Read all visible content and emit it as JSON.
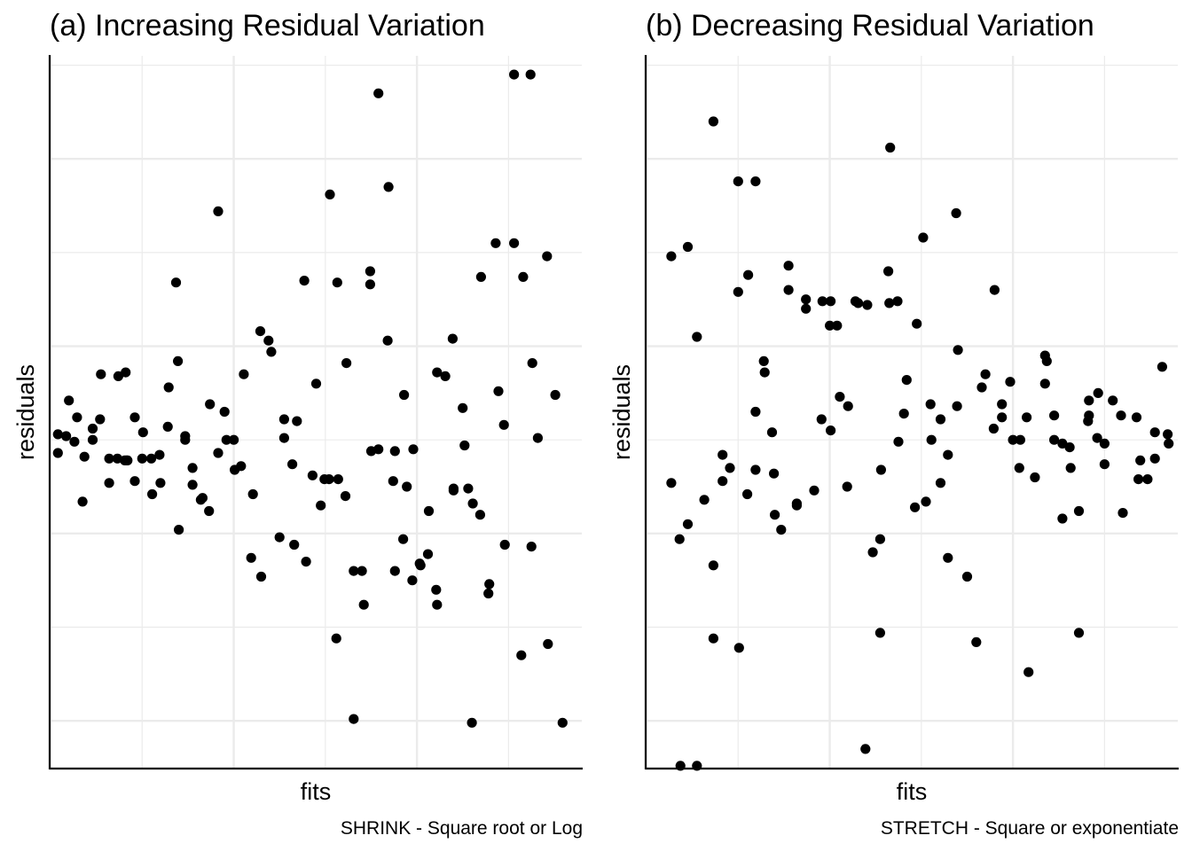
{
  "chart_data": [
    {
      "type": "scatter",
      "title": "(a) Increasing Residual Variation",
      "xlabel": "fits",
      "ylabel": "residuals",
      "caption": "SHRINK - Square root or Log",
      "xlim": [
        0,
        58
      ],
      "ylim": [
        -17.5,
        20.5
      ],
      "x_grid_major": [
        0,
        20,
        40
      ],
      "x_grid_minor": [
        10,
        30,
        50
      ],
      "y_grid_major": [
        -15,
        -5,
        5,
        15
      ],
      "y_grid_minor": [
        -10,
        0,
        10,
        20
      ],
      "grid": true,
      "tick_labels": false,
      "x": [
        0.8,
        0.8,
        1.7,
        2.0,
        2.6,
        2.9,
        3.5,
        3.7,
        4.6,
        4.6,
        5.4,
        5.5,
        6.4,
        6.4,
        7.3,
        7.4,
        8.1,
        8.2,
        8.3,
        8.4,
        9.2,
        9.2,
        10.0,
        10.1,
        11.0,
        11.1,
        11.9,
        12.0,
        12.8,
        12.9,
        13.7,
        13.9,
        14.0,
        14.7,
        14.7,
        15.5,
        15.5,
        16.4,
        16.6,
        17.3,
        17.4,
        18.3,
        18.3,
        19.0,
        19.2,
        20.0,
        20.1,
        20.8,
        21.1,
        21.9,
        22.1,
        22.9,
        23.0,
        23.8,
        24.1,
        25.0,
        25.5,
        25.5,
        26.4,
        26.6,
        26.9,
        27.7,
        27.9,
        28.6,
        29.0,
        29.5,
        29.9,
        30.4,
        30.5,
        31.2,
        31.3,
        31.4,
        32.2,
        32.3,
        33.1,
        33.1,
        34.0,
        34.2,
        34.9,
        34.9,
        35.0,
        35.8,
        35.8,
        36.8,
        36.9,
        37.4,
        37.6,
        37.6,
        38.5,
        38.6,
        38.9,
        39.5,
        39.6,
        40.3,
        40.4,
        41.2,
        41.3,
        42.1,
        42.2,
        42.2,
        43.1,
        43.9,
        44.0,
        44.0,
        45.0,
        45.2,
        45.6,
        46.0,
        46.1,
        46.9,
        47.0,
        47.8,
        47.9,
        48.6,
        48.9,
        49.5,
        49.6,
        50.6,
        50.6,
        51.4,
        51.6,
        52.4,
        52.5,
        52.6,
        53.2,
        54.2,
        54.3,
        55.1,
        55.9
      ],
      "y": [
        -0.7,
        0.3,
        0.2,
        2.1,
        -0.1,
        1.2,
        -3.3,
        -0.9,
        0.6,
        0.0,
        1.1,
        3.5,
        -1.0,
        -2.3,
        -1.0,
        3.4,
        -1.1,
        3.6,
        -1.1,
        -1.1,
        1.2,
        -2.2,
        -1.0,
        0.4,
        -1.0,
        -2.9,
        -0.8,
        -2.3,
        0.7,
        2.8,
        8.4,
        4.2,
        -4.8,
        0.2,
        0.0,
        -1.5,
        -2.4,
        -3.2,
        -3.1,
        -3.8,
        1.9,
        -0.7,
        12.2,
        1.5,
        0.0,
        0.0,
        -1.6,
        -1.4,
        3.5,
        -6.3,
        -2.9,
        5.8,
        -7.3,
        5.3,
        4.7,
        -5.2,
        0.1,
        1.1,
        -1.3,
        -5.6,
        1.0,
        8.5,
        -6.5,
        -1.9,
        3.0,
        -3.5,
        -2.1,
        -2.1,
        13.1,
        -10.6,
        8.4,
        -2.1,
        -3.0,
        4.1,
        -7.0,
        -14.9,
        -7.0,
        -8.8,
        8.3,
        9.0,
        -0.6,
        -0.5,
        18.5,
        5.3,
        13.5,
        -2.2,
        -0.6,
        -7.0,
        -5.3,
        2.4,
        -2.5,
        -7.5,
        -0.5,
        -6.6,
        -6.7,
        -6.1,
        -3.8,
        -8.0,
        3.6,
        -8.8,
        3.4,
        5.4,
        -2.7,
        -2.6,
        1.7,
        -0.3,
        -2.6,
        -15.1,
        -3.4,
        -4.0,
        8.7,
        -8.2,
        -7.7,
        10.5,
        2.6,
        0.8,
        -5.6,
        10.5,
        19.5,
        -11.5,
        8.7,
        19.5,
        -5.7,
        4.1,
        0.1,
        9.8,
        -10.9,
        2.4,
        -15.1
      ]
    },
    {
      "type": "scatter",
      "title": "(b) Decreasing Residual Variation",
      "xlabel": "fits",
      "ylabel": "residuals",
      "caption": "STRETCH - Square or exponentiate",
      "xlim": [
        0,
        58
      ],
      "ylim": [
        -17.5,
        20.5
      ],
      "x_grid_major": [
        0,
        20,
        40
      ],
      "x_grid_minor": [
        10,
        30,
        50
      ],
      "y_grid_major": [
        -15,
        -5,
        5,
        15
      ],
      "y_grid_minor": [
        -10,
        0,
        10,
        20
      ],
      "grid": true,
      "tick_labels": false,
      "x": [
        2.7,
        2.7,
        3.6,
        3.7,
        4.5,
        4.5,
        5.5,
        5.5,
        6.3,
        7.3,
        7.3,
        7.3,
        8.3,
        8.3,
        9.1,
        10.0,
        10.0,
        10.1,
        11.0,
        11.1,
        11.9,
        11.9,
        11.9,
        12.8,
        12.9,
        13.7,
        13.9,
        14.0,
        14.7,
        15.5,
        15.5,
        16.4,
        16.4,
        17.4,
        17.4,
        18.3,
        19.1,
        19.2,
        20.0,
        20.1,
        20.1,
        20.8,
        21.1,
        21.9,
        22.0,
        22.8,
        23.1,
        23.9,
        24.1,
        24.7,
        25.5,
        25.5,
        25.6,
        26.4,
        26.5,
        26.6,
        27.4,
        27.5,
        28.1,
        28.4,
        29.3,
        29.5,
        30.2,
        30.5,
        31.0,
        31.1,
        32.1,
        32.1,
        32.9,
        32.9,
        33.8,
        33.9,
        34.0,
        35.0,
        36.0,
        36.6,
        37.0,
        37.9,
        38.0,
        38.8,
        38.8,
        39.7,
        40.0,
        40.7,
        40.8,
        41.5,
        41.7,
        42.4,
        43.5,
        43.5,
        43.7,
        44.5,
        44.5,
        45.4,
        45.4,
        46.2,
        46.3,
        47.2,
        47.2,
        48.2,
        48.3,
        48.3,
        49.2,
        49.3,
        50.0,
        50.0,
        50.9,
        51.8,
        52.0,
        53.5,
        53.7,
        53.9,
        54.7,
        55.5,
        55.5,
        56.3,
        56.9,
        57.0
      ],
      "y": [
        9.8,
        -2.3,
        -5.3,
        -17.4,
        -4.5,
        10.3,
        -17.4,
        5.5,
        -3.2,
        -6.7,
        -10.6,
        17.0,
        -2.2,
        -0.8,
        -1.5,
        7.9,
        13.8,
        -11.1,
        -2.9,
        8.8,
        1.5,
        -1.6,
        13.8,
        4.2,
        3.6,
        0.4,
        -1.8,
        -4.0,
        -4.8,
        9.3,
        8.0,
        -3.5,
        -3.4,
        7.0,
        7.5,
        -2.7,
        1.1,
        7.4,
        6.1,
        7.4,
        0.5,
        6.1,
        2.3,
        -2.5,
        1.8,
        7.4,
        7.3,
        -16.5,
        7.2,
        -6.0,
        -10.3,
        -5.3,
        -1.6,
        9.0,
        7.3,
        15.6,
        7.4,
        -0.1,
        1.4,
        3.2,
        -3.6,
        6.2,
        10.8,
        -3.3,
        1.9,
        0.0,
        -2.3,
        1.1,
        -0.8,
        -6.3,
        12.1,
        1.8,
        4.8,
        -7.3,
        -10.8,
        2.8,
        3.5,
        0.6,
        8.0,
        1.2,
        1.9,
        3.1,
        0.0,
        -1.5,
        0.0,
        1.2,
        -12.4,
        -2.0,
        3.0,
        4.5,
        4.2,
        1.3,
        0.0,
        -0.2,
        -4.2,
        -0.4,
        -1.5,
        -3.8,
        -10.3,
        1.0,
        1.3,
        2.1,
        0.1,
        2.5,
        -1.3,
        -0.2,
        2.1,
        1.3,
        -3.9,
        1.2,
        -2.1,
        -1.1,
        -2.1,
        0.4,
        -1.0,
        3.9,
        0.3,
        -0.2
      ]
    }
  ]
}
